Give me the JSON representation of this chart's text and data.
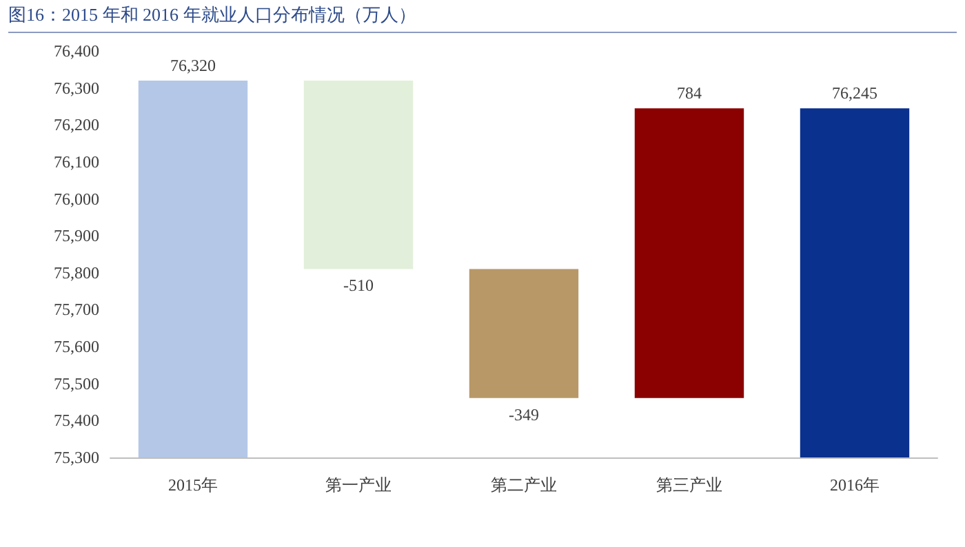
{
  "chart_data": {
    "type": "bar",
    "title": "图16：2015 年和 2016 年就业人口分布情况（万人）",
    "categories": [
      "2015年",
      "第一产业",
      "第二产业",
      "第三产业",
      "2016年"
    ],
    "base": [
      75300,
      76320,
      75810,
      75461,
      75300
    ],
    "values": [
      1020,
      -510,
      -349,
      784,
      945
    ],
    "value_labels": [
      "76,320",
      "-510",
      "-349",
      "784",
      "76,245"
    ],
    "colors": [
      "#b4c7e7",
      "#e2efda",
      "#b99868",
      "#8b0000",
      "#0b318f"
    ],
    "ylim": [
      75300,
      76400
    ],
    "yticks": [
      {
        "value": 75300,
        "label": "75,300"
      },
      {
        "value": 75400,
        "label": "75,400"
      },
      {
        "value": 75500,
        "label": "75,500"
      },
      {
        "value": 75600,
        "label": "75,600"
      },
      {
        "value": 75700,
        "label": "75,700"
      },
      {
        "value": 75800,
        "label": "75,800"
      },
      {
        "value": 75900,
        "label": "75,900"
      },
      {
        "value": 76000,
        "label": "76,000"
      },
      {
        "value": 76100,
        "label": "76,100"
      },
      {
        "value": 76200,
        "label": "76,200"
      },
      {
        "value": 76300,
        "label": "76,300"
      },
      {
        "value": 76400,
        "label": "76,400"
      }
    ],
    "grid": false
  }
}
